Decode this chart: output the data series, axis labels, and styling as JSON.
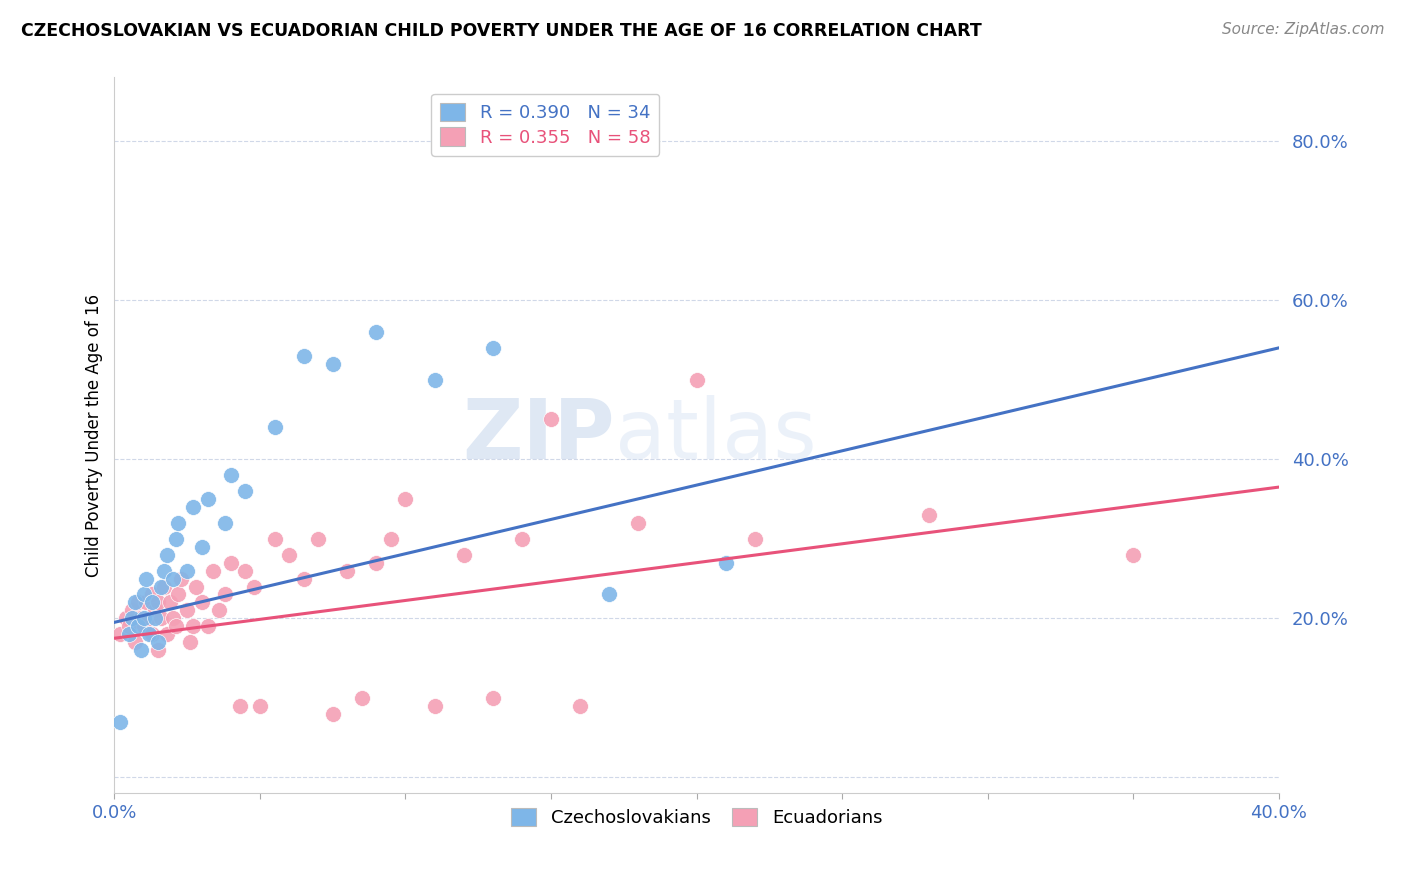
{
  "title": "CZECHOSLOVAKIAN VS ECUADORIAN CHILD POVERTY UNDER THE AGE OF 16 CORRELATION CHART",
  "source": "Source: ZipAtlas.com",
  "ylabel": "Child Poverty Under the Age of 16",
  "xlim": [
    0.0,
    0.4
  ],
  "ylim": [
    -0.02,
    0.88
  ],
  "xticks": [
    0.0,
    0.05,
    0.1,
    0.15,
    0.2,
    0.25,
    0.3,
    0.35,
    0.4
  ],
  "yticks": [
    0.0,
    0.2,
    0.4,
    0.6,
    0.8
  ],
  "czech_R": 0.39,
  "czech_N": 34,
  "ecua_R": 0.355,
  "ecua_N": 58,
  "czech_color": "#7EB6E8",
  "ecua_color": "#F4A0B5",
  "czech_line_color": "#4472C4",
  "ecua_line_color": "#E8527A",
  "legend_label_czech": "Czechoslovakians",
  "legend_label_ecua": "Ecuadorians",
  "watermark_zip": "ZIP",
  "watermark_atlas": "atlas",
  "background_color": "#FFFFFF",
  "grid_color": "#D0D8E8",
  "czech_line_x0": 0.0,
  "czech_line_y0": 0.195,
  "czech_line_x1": 0.4,
  "czech_line_y1": 0.54,
  "ecua_line_x0": 0.0,
  "ecua_line_y0": 0.175,
  "ecua_line_x1": 0.4,
  "ecua_line_y1": 0.365,
  "czech_x": [
    0.002,
    0.005,
    0.006,
    0.007,
    0.008,
    0.009,
    0.01,
    0.01,
    0.011,
    0.012,
    0.013,
    0.014,
    0.015,
    0.016,
    0.017,
    0.018,
    0.02,
    0.021,
    0.022,
    0.025,
    0.027,
    0.03,
    0.032,
    0.038,
    0.04,
    0.045,
    0.055,
    0.065,
    0.075,
    0.09,
    0.11,
    0.13,
    0.17,
    0.21
  ],
  "czech_y": [
    0.07,
    0.18,
    0.2,
    0.22,
    0.19,
    0.16,
    0.2,
    0.23,
    0.25,
    0.18,
    0.22,
    0.2,
    0.17,
    0.24,
    0.26,
    0.28,
    0.25,
    0.3,
    0.32,
    0.26,
    0.34,
    0.29,
    0.35,
    0.32,
    0.38,
    0.36,
    0.44,
    0.53,
    0.52,
    0.56,
    0.5,
    0.54,
    0.23,
    0.27
  ],
  "ecua_x": [
    0.002,
    0.004,
    0.005,
    0.006,
    0.007,
    0.008,
    0.009,
    0.01,
    0.011,
    0.012,
    0.013,
    0.013,
    0.014,
    0.015,
    0.015,
    0.016,
    0.017,
    0.018,
    0.019,
    0.02,
    0.021,
    0.022,
    0.023,
    0.025,
    0.026,
    0.027,
    0.028,
    0.03,
    0.032,
    0.034,
    0.036,
    0.038,
    0.04,
    0.043,
    0.045,
    0.048,
    0.05,
    0.055,
    0.06,
    0.065,
    0.07,
    0.075,
    0.08,
    0.085,
    0.09,
    0.095,
    0.1,
    0.11,
    0.12,
    0.13,
    0.14,
    0.15,
    0.16,
    0.18,
    0.2,
    0.22,
    0.28,
    0.35
  ],
  "ecua_y": [
    0.18,
    0.2,
    0.19,
    0.21,
    0.17,
    0.22,
    0.2,
    0.19,
    0.22,
    0.2,
    0.18,
    0.23,
    0.21,
    0.16,
    0.22,
    0.2,
    0.24,
    0.18,
    0.22,
    0.2,
    0.19,
    0.23,
    0.25,
    0.21,
    0.17,
    0.19,
    0.24,
    0.22,
    0.19,
    0.26,
    0.21,
    0.23,
    0.27,
    0.09,
    0.26,
    0.24,
    0.09,
    0.3,
    0.28,
    0.25,
    0.3,
    0.08,
    0.26,
    0.1,
    0.27,
    0.3,
    0.35,
    0.09,
    0.28,
    0.1,
    0.3,
    0.45,
    0.09,
    0.32,
    0.5,
    0.3,
    0.33,
    0.28
  ]
}
